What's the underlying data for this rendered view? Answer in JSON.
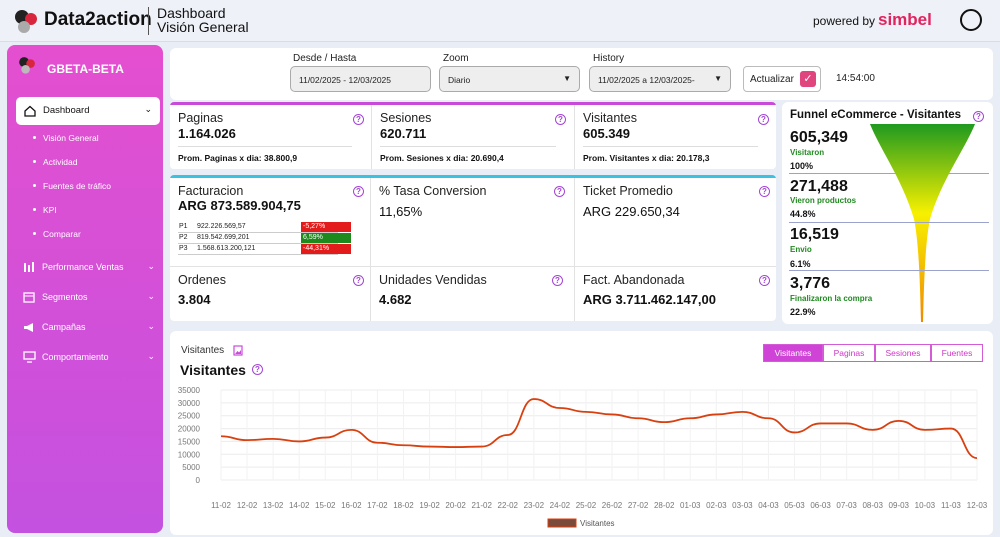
{
  "header": {
    "brand": "Data2action",
    "title": "Dashboard",
    "subtitle": "Visión General",
    "powered_by": "powered by",
    "partner": "simbel"
  },
  "sidebar": {
    "org": "GBETA-BETA",
    "active": "Dashboard",
    "sub_items": [
      "Visión General",
      "Actividad",
      "Fuentes de tráfico",
      "KPI",
      "Comparar"
    ],
    "sections": [
      "Performance Ventas",
      "Segmentos",
      "Campañas",
      "Comportamiento"
    ]
  },
  "filters": {
    "range_label": "Desde / Hasta",
    "range_value": "11/02/2025 - 12/03/2025",
    "zoom_label": "Zoom",
    "zoom_value": "Diario",
    "history_label": "History",
    "history_value": "11/02/2025 a 12/03/2025-",
    "refresh_label": "Actualizar",
    "time": "14:54:00"
  },
  "kpis_top": [
    {
      "title": "Paginas",
      "value": "1.164.026",
      "sub": "Prom. Paginas x dia: 38.800,9"
    },
    {
      "title": "Sesiones",
      "value": "620.711",
      "sub": "Prom. Sesiones x dia: 20.690,4"
    },
    {
      "title": "Visitantes",
      "value": "605.349",
      "sub": "Prom. Visitantes x dia: 20.178,3"
    }
  ],
  "kpis_mid": {
    "facturacion": {
      "title": "Facturacion",
      "value": "ARG 873.589.904,75",
      "periods": [
        {
          "k": "P1",
          "v": "922.226.569,57",
          "pct": "-5,27%",
          "color": "#e31b1b"
        },
        {
          "k": "P2",
          "v": "819.542.699,201",
          "pct": "6,59%",
          "color": "#1e8a1e"
        },
        {
          "k": "P3",
          "v": "1.568.613.200,121",
          "pct": "-44,31%",
          "color": "#e31b1b"
        }
      ]
    },
    "conversion": {
      "title": "% Tasa Conversion",
      "value": "11,65%"
    },
    "ticket": {
      "title": "Ticket Promedio",
      "value": "ARG 229.650,34"
    }
  },
  "kpis_bottom": [
    {
      "title": "Ordenes",
      "value": "3.804"
    },
    {
      "title": "Unidades Vendidas",
      "value": "4.682"
    },
    {
      "title": "Fact. Abandonada",
      "value": "ARG 3.711.462.147,00"
    }
  ],
  "funnel": {
    "title": "Funnel eCommerce - Visitantes",
    "steps": [
      {
        "num": "605,349",
        "label": "Visitaron",
        "pct": "100%"
      },
      {
        "num": "271,488",
        "label": "Vieron productos",
        "pct": "44.8%"
      },
      {
        "num": "16,519",
        "label": "Envio",
        "pct": "6.1%"
      },
      {
        "num": "3,776",
        "label": "Finalizaron la compra",
        "pct": "22.9%"
      }
    ]
  },
  "chart_section": {
    "small_label": "Visitantes",
    "title": "Visitantes",
    "tabs": [
      "Visitantes",
      "Paginas",
      "Sesiones",
      "Fuentes"
    ],
    "active_tab": "Visitantes"
  },
  "chart_data": {
    "type": "line",
    "x": [
      "11-02",
      "12-02",
      "13-02",
      "14-02",
      "15-02",
      "16-02",
      "17-02",
      "18-02",
      "19-02",
      "20-02",
      "21-02",
      "22-02",
      "23-02",
      "24-02",
      "25-02",
      "26-02",
      "27-02",
      "28-02",
      "01-03",
      "02-03",
      "03-03",
      "04-03",
      "05-03",
      "06-03",
      "07-03",
      "08-03",
      "09-03",
      "10-03",
      "11-03",
      "12-03"
    ],
    "series": [
      {
        "name": "Visitantes",
        "color": "#d9400f",
        "values": [
          17000,
          15500,
          16000,
          15000,
          16500,
          19500,
          14500,
          13500,
          13000,
          12800,
          13000,
          17500,
          31500,
          28000,
          26500,
          25500,
          24000,
          22500,
          24000,
          25500,
          26500,
          24000,
          18500,
          22000,
          22000,
          19500,
          23000,
          19500,
          20000,
          8500
        ]
      }
    ],
    "ylim": [
      0,
      35000
    ],
    "yticks": [
      0,
      5000,
      10000,
      15000,
      20000,
      25000,
      30000,
      35000
    ],
    "legend": "bottom",
    "grid": true
  }
}
